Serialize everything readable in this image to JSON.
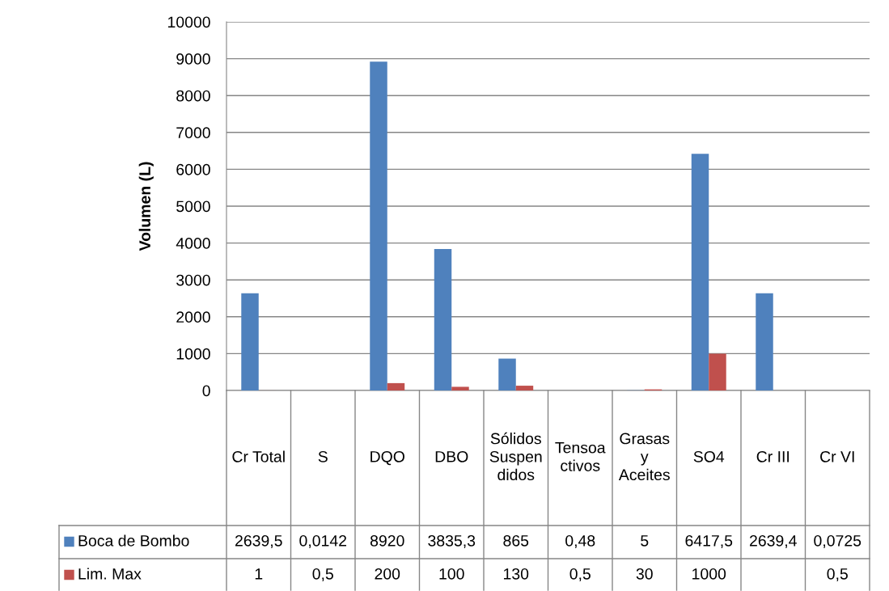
{
  "chart_data": {
    "type": "bar",
    "ylabel": "Volumen (L)",
    "categories": [
      "Cr Total",
      "S",
      "DQO",
      "DBO",
      "Sólidos Suspendidos",
      "Tensoactivos",
      "Grasas y Aceites",
      "SO4",
      "Cr III",
      "Cr VI"
    ],
    "series": [
      {
        "name": "Boca de Bombo",
        "color": "#4f81bd",
        "values": [
          2639.5,
          0.0142,
          8920,
          3835.3,
          865,
          0.48,
          5,
          6417.5,
          2639.4,
          0.0725
        ],
        "value_labels": [
          "2639,5",
          "0,0142",
          "8920",
          "3835,3",
          "865",
          "0,48",
          "5",
          "6417,5",
          "2639,4",
          "0,0725"
        ]
      },
      {
        "name": "Lim. Max",
        "color": "#c0504d",
        "values": [
          1,
          0.5,
          200,
          100,
          130,
          0.5,
          30,
          1000,
          null,
          0.5
        ],
        "value_labels": [
          "1",
          "0,5",
          "200",
          "100",
          "130",
          "0,5",
          "30",
          "1000",
          null,
          "0,5"
        ]
      }
    ],
    "ylim": [
      0,
      10000
    ],
    "yticks": [
      0,
      1000,
      2000,
      3000,
      4000,
      5000,
      6000,
      7000,
      8000,
      9000,
      10000
    ],
    "grid": "y",
    "legend": "bottom"
  }
}
